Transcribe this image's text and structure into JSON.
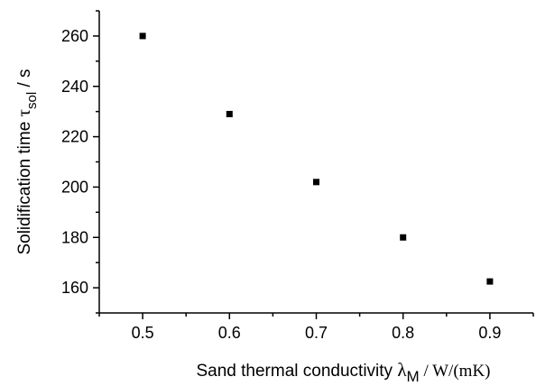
{
  "chart_data": {
    "type": "scatter",
    "x": [
      0.5,
      0.6,
      0.7,
      0.8,
      0.9
    ],
    "y": [
      260,
      229,
      202,
      180,
      162.5
    ],
    "xlim": [
      0.45,
      0.95
    ],
    "ylim": [
      150,
      270
    ],
    "xticks": [
      "0.5",
      "0.6",
      "0.7",
      "0.8",
      "0.9"
    ],
    "yticks": [
      "160",
      "180",
      "200",
      "220",
      "240",
      "260"
    ],
    "xlabel": {
      "main": "Sand thermal conductivity ",
      "symbol": "λ",
      "subscript": "M",
      "unit": " / W/(mK)"
    },
    "ylabel": {
      "main": "Solidification time ",
      "symbol": "τ",
      "subscript": "sol",
      "unit": " / s"
    },
    "grid": false,
    "legend": "none",
    "marker": "square",
    "color": "#000000"
  }
}
